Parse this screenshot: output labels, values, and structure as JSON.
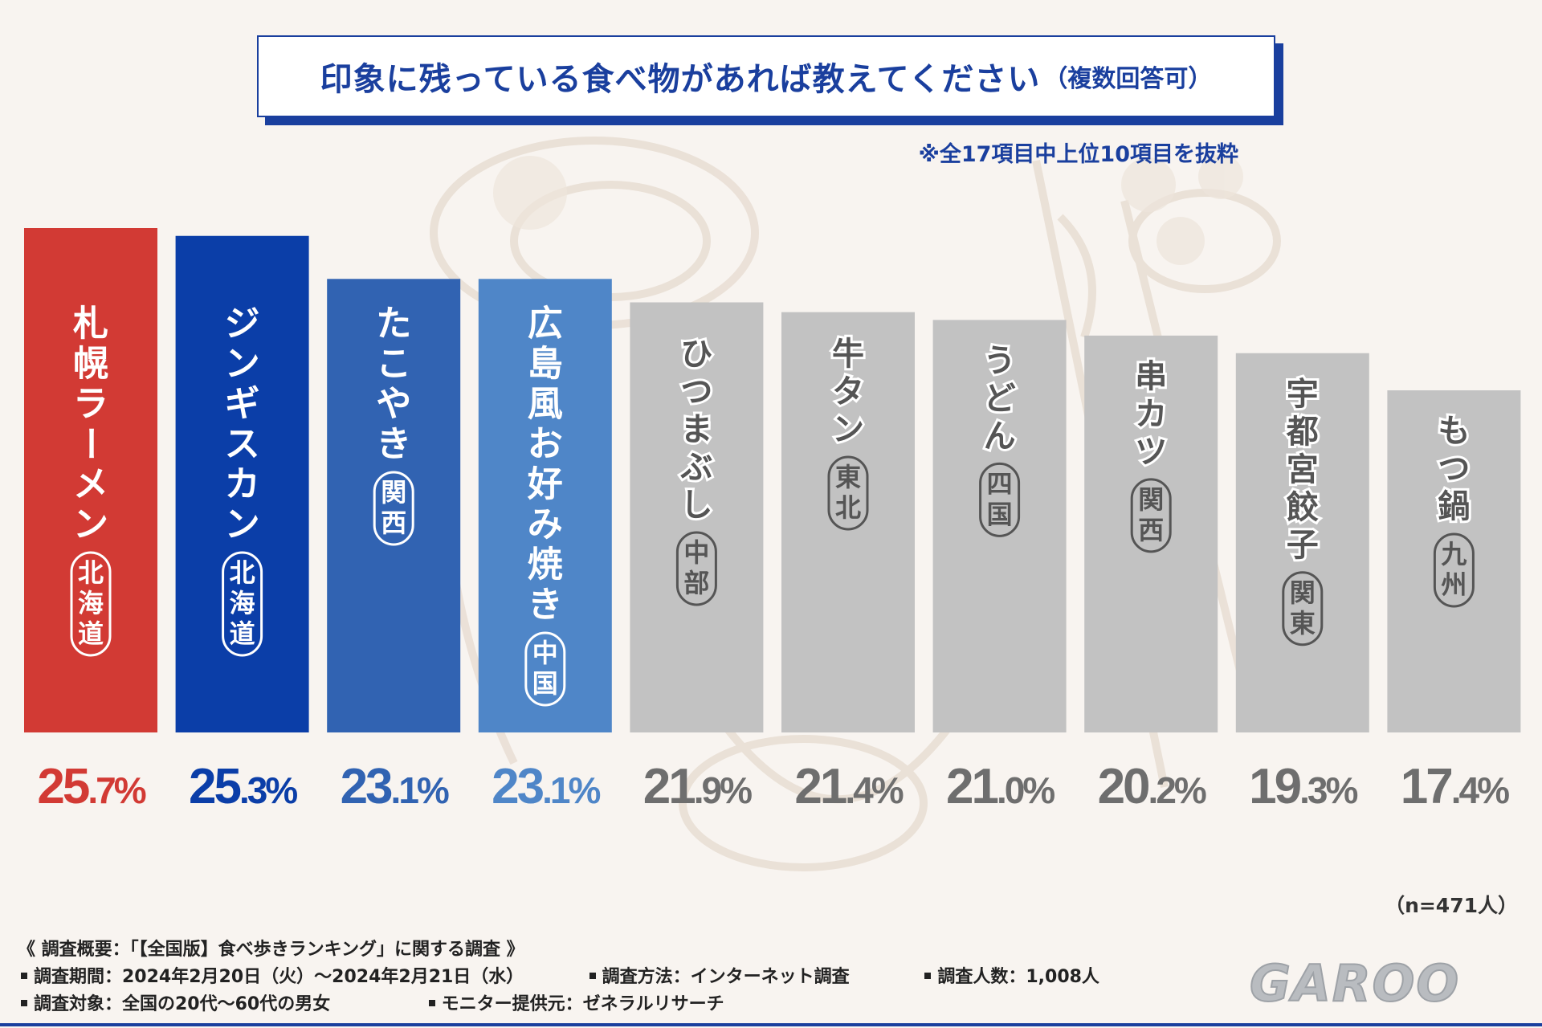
{
  "title": "印象に残っている食べ物があれば教えてください",
  "title_suffix": "（複数回答可）",
  "note": "※全17項目中上位10項目を抜粋",
  "sample": "（n=471人）",
  "chart_data": {
    "type": "bar",
    "unit": "%",
    "categories": [
      {
        "name": "札幌ラーメン",
        "region": "北海道"
      },
      {
        "name": "ジンギスカン",
        "region": "北海道"
      },
      {
        "name": "たこやき",
        "region": "関西"
      },
      {
        "name": "広島風お好み焼き",
        "region": "中国"
      },
      {
        "name": "ひつまぶし",
        "region": "中部"
      },
      {
        "name": "牛タン",
        "region": "東北"
      },
      {
        "name": "うどん",
        "region": "四国"
      },
      {
        "name": "串カツ",
        "region": "関西"
      },
      {
        "name": "宇都宮餃子",
        "region": "関東"
      },
      {
        "name": "もつ鍋",
        "region": "九州"
      }
    ],
    "values": [
      25.7,
      25.3,
      23.1,
      23.1,
      21.9,
      21.4,
      21.0,
      20.2,
      19.3,
      17.4
    ],
    "colors": [
      "#d23a34",
      "#0b3ea8",
      "#3163b2",
      "#4f86c8",
      "#c2c2c2",
      "#c2c2c2",
      "#c2c2c2",
      "#c2c2c2",
      "#c2c2c2",
      "#c2c2c2"
    ],
    "value_colors": [
      "#d23a34",
      "#0b3ea8",
      "#3163b2",
      "#4f86c8",
      "#6e6e6e",
      "#6e6e6e",
      "#6e6e6e",
      "#6e6e6e",
      "#6e6e6e",
      "#6e6e6e"
    ],
    "grid": false,
    "legend": "none"
  },
  "footer": {
    "heading": "《 調査概要：「【全国版】食べ歩きランキング」に関する調査 》",
    "period": "調査期間：2024年2月20日（火）～2024年2月21日（水）",
    "method": "調査方法：インターネット調査",
    "count": "調査人数：1,008人",
    "target": "調査対象：全国の20代～60代の男女",
    "provider": "モニター提供元：ゼネラルリサーチ"
  },
  "logo": "GAROO"
}
